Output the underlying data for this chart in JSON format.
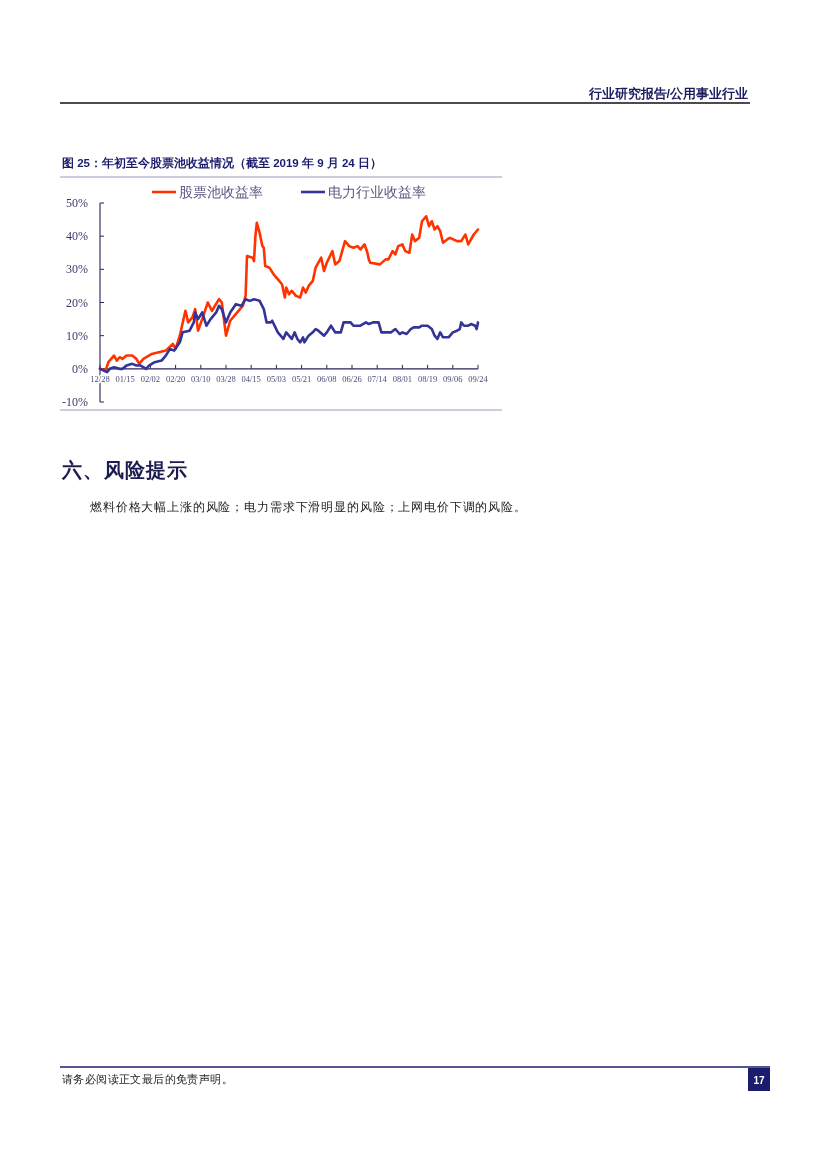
{
  "chart_data": {
    "type": "line",
    "title": "图 25：年初至今股票池收益情况（截至 2019 年 9 月 24 日）",
    "annotations": [
      "行业研究报告/公用事业行业",
      "六、风险提示",
      "燃料价格大幅上涨的风险；电力需求下滑明显的风险；上网电价下调的风险。",
      "请务必阅读正文最后的免责声明。",
      "17"
    ],
    "xlim": [
      "2018-12-28",
      "2019-09-24"
    ],
    "xticks": [
      {
        "value": "2018-12-28",
        "label": "12/28"
      },
      {
        "value": "2019-01-15",
        "label": "01/15"
      },
      {
        "value": "2019-02-02",
        "label": "02/02"
      },
      {
        "value": "2019-02-20",
        "label": "02/20"
      },
      {
        "value": "2019-03-10",
        "label": "03/10"
      },
      {
        "value": "2019-03-28",
        "label": "03/28"
      },
      {
        "value": "2019-04-15",
        "label": "04/15"
      },
      {
        "value": "2019-05-03",
        "label": "05/03"
      },
      {
        "value": "2019-05-21",
        "label": "05/21"
      },
      {
        "value": "2019-06-08",
        "label": "06/08"
      },
      {
        "value": "2019-06-26",
        "label": "06/26"
      },
      {
        "value": "2019-07-14",
        "label": "07/14"
      },
      {
        "value": "2019-08-01",
        "label": "08/01"
      },
      {
        "value": "2019-08-19",
        "label": "08/19"
      },
      {
        "value": "2019-09-06",
        "label": "09/06"
      },
      {
        "value": "2019-09-24",
        "label": "09/24"
      }
    ],
    "ylim": [
      -10,
      50
    ],
    "yticks": [
      {
        "value": -10,
        "label": "-10%"
      },
      {
        "value": 0,
        "label": "0%"
      },
      {
        "value": 10,
        "label": "10%"
      },
      {
        "value": 20,
        "label": "20%"
      },
      {
        "value": 30,
        "label": "30%"
      },
      {
        "value": 40,
        "label": "40%"
      },
      {
        "value": 50,
        "label": "50%"
      }
    ],
    "legend": "top",
    "line_style": "solid",
    "series": [
      {
        "name": "股票池收益率",
        "color": "#ff3300",
        "x": [
          "2018-12-28",
          "2019-01-01",
          "2019-01-03",
          "2019-01-07",
          "2019-01-09",
          "2019-01-11",
          "2019-01-13",
          "2019-01-16",
          "2019-01-20",
          "2019-01-23",
          "2019-01-25",
          "2019-01-28",
          "2019-02-03",
          "2019-02-13",
          "2019-02-18",
          "2019-02-20",
          "2019-02-23",
          "2019-02-27",
          "2019-03-01",
          "2019-03-04",
          "2019-03-06",
          "2019-03-08",
          "2019-03-11",
          "2019-03-15",
          "2019-03-18",
          "2019-03-23",
          "2019-03-25",
          "2019-03-28",
          "2019-03-31",
          "2019-04-05",
          "2019-04-09",
          "2019-04-11",
          "2019-04-12",
          "2019-04-16",
          "2019-04-17",
          "2019-04-18",
          "2019-04-19",
          "2019-04-21",
          "2019-04-23",
          "2019-04-24",
          "2019-04-25",
          "2019-04-28",
          "2019-05-01",
          "2019-05-05",
          "2019-05-07",
          "2019-05-09",
          "2019-05-10",
          "2019-05-12",
          "2019-05-14",
          "2019-05-17",
          "2019-05-20",
          "2019-05-22",
          "2019-05-24",
          "2019-05-26",
          "2019-05-29",
          "2019-05-31",
          "2019-06-04",
          "2019-06-06",
          "2019-06-08",
          "2019-06-12",
          "2019-06-14",
          "2019-06-17",
          "2019-06-18",
          "2019-06-21",
          "2019-06-24",
          "2019-06-27",
          "2019-06-30",
          "2019-07-02",
          "2019-07-05",
          "2019-07-07",
          "2019-07-08",
          "2019-07-09",
          "2019-07-16",
          "2019-07-20",
          "2019-07-22",
          "2019-07-25",
          "2019-07-27",
          "2019-07-29",
          "2019-08-01",
          "2019-08-03",
          "2019-08-06",
          "2019-08-08",
          "2019-08-10",
          "2019-08-13",
          "2019-08-15",
          "2019-08-18",
          "2019-08-20",
          "2019-08-22",
          "2019-08-24",
          "2019-08-26",
          "2019-08-28",
          "2019-08-30",
          "2019-09-02",
          "2019-09-04",
          "2019-09-09",
          "2019-09-12",
          "2019-09-15",
          "2019-09-17",
          "2019-09-19",
          "2019-09-21",
          "2019-09-24"
        ],
        "values": [
          0,
          -0.5,
          2,
          4,
          2.5,
          3.5,
          3,
          4,
          4,
          3,
          1.5,
          3,
          4.5,
          5.5,
          7.5,
          6,
          10,
          17.5,
          14,
          15.5,
          18,
          11.5,
          15,
          20,
          17.5,
          21,
          20,
          10,
          14.5,
          17,
          19,
          22,
          34,
          33.5,
          32.5,
          40,
          44,
          41,
          37,
          36.5,
          31,
          30.5,
          28.5,
          26.5,
          25.5,
          21.5,
          24.5,
          22.5,
          23.5,
          22,
          21.5,
          24.5,
          23,
          25,
          26.5,
          30.5,
          33.5,
          29.5,
          32,
          35.5,
          31.5,
          32.5,
          34,
          38.5,
          37,
          36.5,
          37,
          36,
          37.5,
          35,
          33,
          32,
          31.5,
          33,
          33,
          35.5,
          34.5,
          37,
          37.5,
          35.5,
          35,
          40.5,
          38.5,
          39.5,
          44.5,
          46,
          43,
          44.5,
          42,
          43,
          41.5,
          38,
          39,
          39.5,
          38.5,
          38.5,
          40.5,
          37.5,
          39,
          40.5,
          42
        ]
      },
      {
        "name": "电力行业收益率",
        "color": "#333399",
        "x": [
          "2018-12-28",
          "2019-01-02",
          "2019-01-04",
          "2019-01-07",
          "2019-01-11",
          "2019-01-13",
          "2019-01-16",
          "2019-01-20",
          "2019-01-23",
          "2019-01-26",
          "2019-01-30",
          "2019-02-01",
          "2019-02-05",
          "2019-02-10",
          "2019-02-13",
          "2019-02-16",
          "2019-02-19",
          "2019-02-23",
          "2019-02-25",
          "2019-03-02",
          "2019-03-05",
          "2019-03-06",
          "2019-03-08",
          "2019-03-11",
          "2019-03-14",
          "2019-03-17",
          "2019-03-21",
          "2019-03-23",
          "2019-03-25",
          "2019-03-28",
          "2019-03-31",
          "2019-04-04",
          "2019-04-08",
          "2019-04-11",
          "2019-04-14",
          "2019-04-17",
          "2019-04-21",
          "2019-04-24",
          "2019-04-26",
          "2019-04-29",
          "2019-04-30",
          "2019-05-04",
          "2019-05-06",
          "2019-05-08",
          "2019-05-10",
          "2019-05-12",
          "2019-05-14",
          "2019-05-16",
          "2019-05-18",
          "2019-05-20",
          "2019-05-22",
          "2019-05-23",
          "2019-05-26",
          "2019-05-29",
          "2019-05-31",
          "2019-06-02",
          "2019-06-06",
          "2019-06-08",
          "2019-06-11",
          "2019-06-14",
          "2019-06-18",
          "2019-06-20",
          "2019-06-25",
          "2019-06-27",
          "2019-07-02",
          "2019-07-06",
          "2019-07-08",
          "2019-07-11",
          "2019-07-15",
          "2019-07-17",
          "2019-07-20",
          "2019-07-24",
          "2019-07-27",
          "2019-07-30",
          "2019-08-01",
          "2019-08-04",
          "2019-08-07",
          "2019-08-09",
          "2019-08-13",
          "2019-08-15",
          "2019-08-19",
          "2019-08-22",
          "2019-08-24",
          "2019-08-26",
          "2019-08-28",
          "2019-08-30",
          "2019-09-03",
          "2019-09-06",
          "2019-09-09",
          "2019-09-11",
          "2019-09-12",
          "2019-09-14",
          "2019-09-17",
          "2019-09-19",
          "2019-09-22",
          "2019-09-23",
          "2019-09-24"
        ],
        "values": [
          0,
          -1,
          0,
          0.5,
          0,
          0,
          1,
          1.5,
          1,
          1,
          0,
          1,
          2,
          2.5,
          4,
          6,
          5.5,
          8,
          11,
          11.5,
          14,
          17,
          15,
          17,
          13,
          15,
          17,
          19,
          18,
          14,
          17,
          19.5,
          19,
          21,
          20.5,
          21,
          20.5,
          18,
          14,
          14,
          14.5,
          11,
          10,
          9,
          11,
          10,
          9,
          11,
          9,
          8,
          9.5,
          8,
          10,
          11,
          12,
          11.5,
          10,
          11,
          13,
          11,
          11,
          14,
          14,
          13,
          13,
          14,
          13.5,
          14,
          14,
          11,
          11,
          11,
          12,
          10.5,
          11,
          10.5,
          12,
          12.5,
          12.5,
          13,
          13,
          12,
          10,
          9,
          11,
          9.5,
          9.5,
          11,
          11.5,
          12,
          14,
          13,
          13,
          13.5,
          13,
          12,
          14
        ]
      }
    ]
  }
}
